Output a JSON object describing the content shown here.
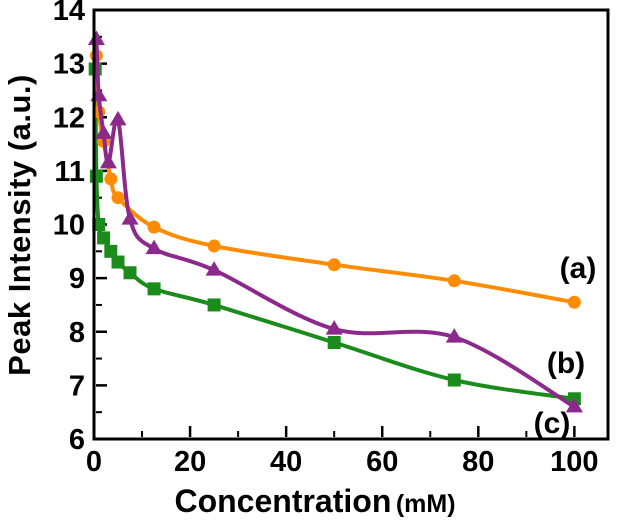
{
  "figure": {
    "background": "#ffffff",
    "frame_color": "#000000"
  },
  "chart_data": {
    "type": "line",
    "title": "",
    "xlabel": "Concentration (mM)",
    "xlabel_main": "Concentration",
    "xlabel_unit": "(mM)",
    "ylabel": "Peak Intensity (a.u.)",
    "xlim": [
      0,
      107
    ],
    "ylim": [
      6,
      14
    ],
    "x_major_ticks": [
      0,
      20,
      40,
      60,
      80,
      100
    ],
    "x_tick_labels": [
      "0",
      "20",
      "40",
      "60",
      "80",
      "100"
    ],
    "x_minor_ticks": [
      10,
      30,
      50,
      70,
      90
    ],
    "y_major_ticks": [
      6,
      7,
      8,
      9,
      10,
      11,
      12,
      13,
      14
    ],
    "y_tick_labels": [
      "6",
      "7",
      "8",
      "9",
      "10",
      "11",
      "12",
      "13",
      "14"
    ],
    "y_minor_step": 0.5,
    "grid": false,
    "legend_position": "inline-right-of-curves",
    "series": [
      {
        "name": "c",
        "label": "(c)",
        "marker": "square",
        "color": "#1B8C1B",
        "x": [
          0.25,
          0.5,
          1,
          2,
          3.5,
          5,
          7.5,
          12.5,
          25,
          50,
          75,
          100
        ],
        "y": [
          12.9,
          10.9,
          10.0,
          9.75,
          9.5,
          9.3,
          9.1,
          8.8,
          8.5,
          7.8,
          7.1,
          6.75
        ]
      },
      {
        "name": "a",
        "label": "(a)",
        "marker": "circle",
        "color": "#FF8C00",
        "x": [
          0.5,
          1,
          2,
          3.5,
          5,
          12.5,
          25,
          50,
          75,
          100
        ],
        "y": [
          13.15,
          12.1,
          11.55,
          10.85,
          10.5,
          9.95,
          9.6,
          9.25,
          8.95,
          8.55
        ]
      },
      {
        "name": "b",
        "label": "(b)",
        "marker": "triangle",
        "color": "#8C2A8C",
        "x": [
          0.5,
          1,
          2,
          3,
          5,
          7.5,
          12.5,
          25,
          50,
          75,
          100
        ],
        "y": [
          13.45,
          12.4,
          11.7,
          11.15,
          11.95,
          10.1,
          9.55,
          9.15,
          8.05,
          7.9,
          6.6
        ]
      }
    ]
  }
}
